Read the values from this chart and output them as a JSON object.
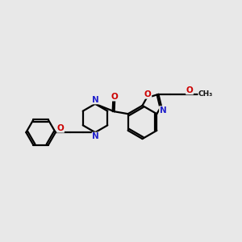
{
  "background_color": "#e8e8e8",
  "bond_color": "#000000",
  "nitrogen_color": "#2222cc",
  "oxygen_color": "#cc0000",
  "line_width": 1.6,
  "figsize": [
    3.0,
    3.0
  ],
  "dpi": 100,
  "xlim": [
    0,
    10
  ],
  "ylim": [
    2.5,
    7.5
  ],
  "label_fontsize": 7.5,
  "label_bg": "#e8e8e8"
}
